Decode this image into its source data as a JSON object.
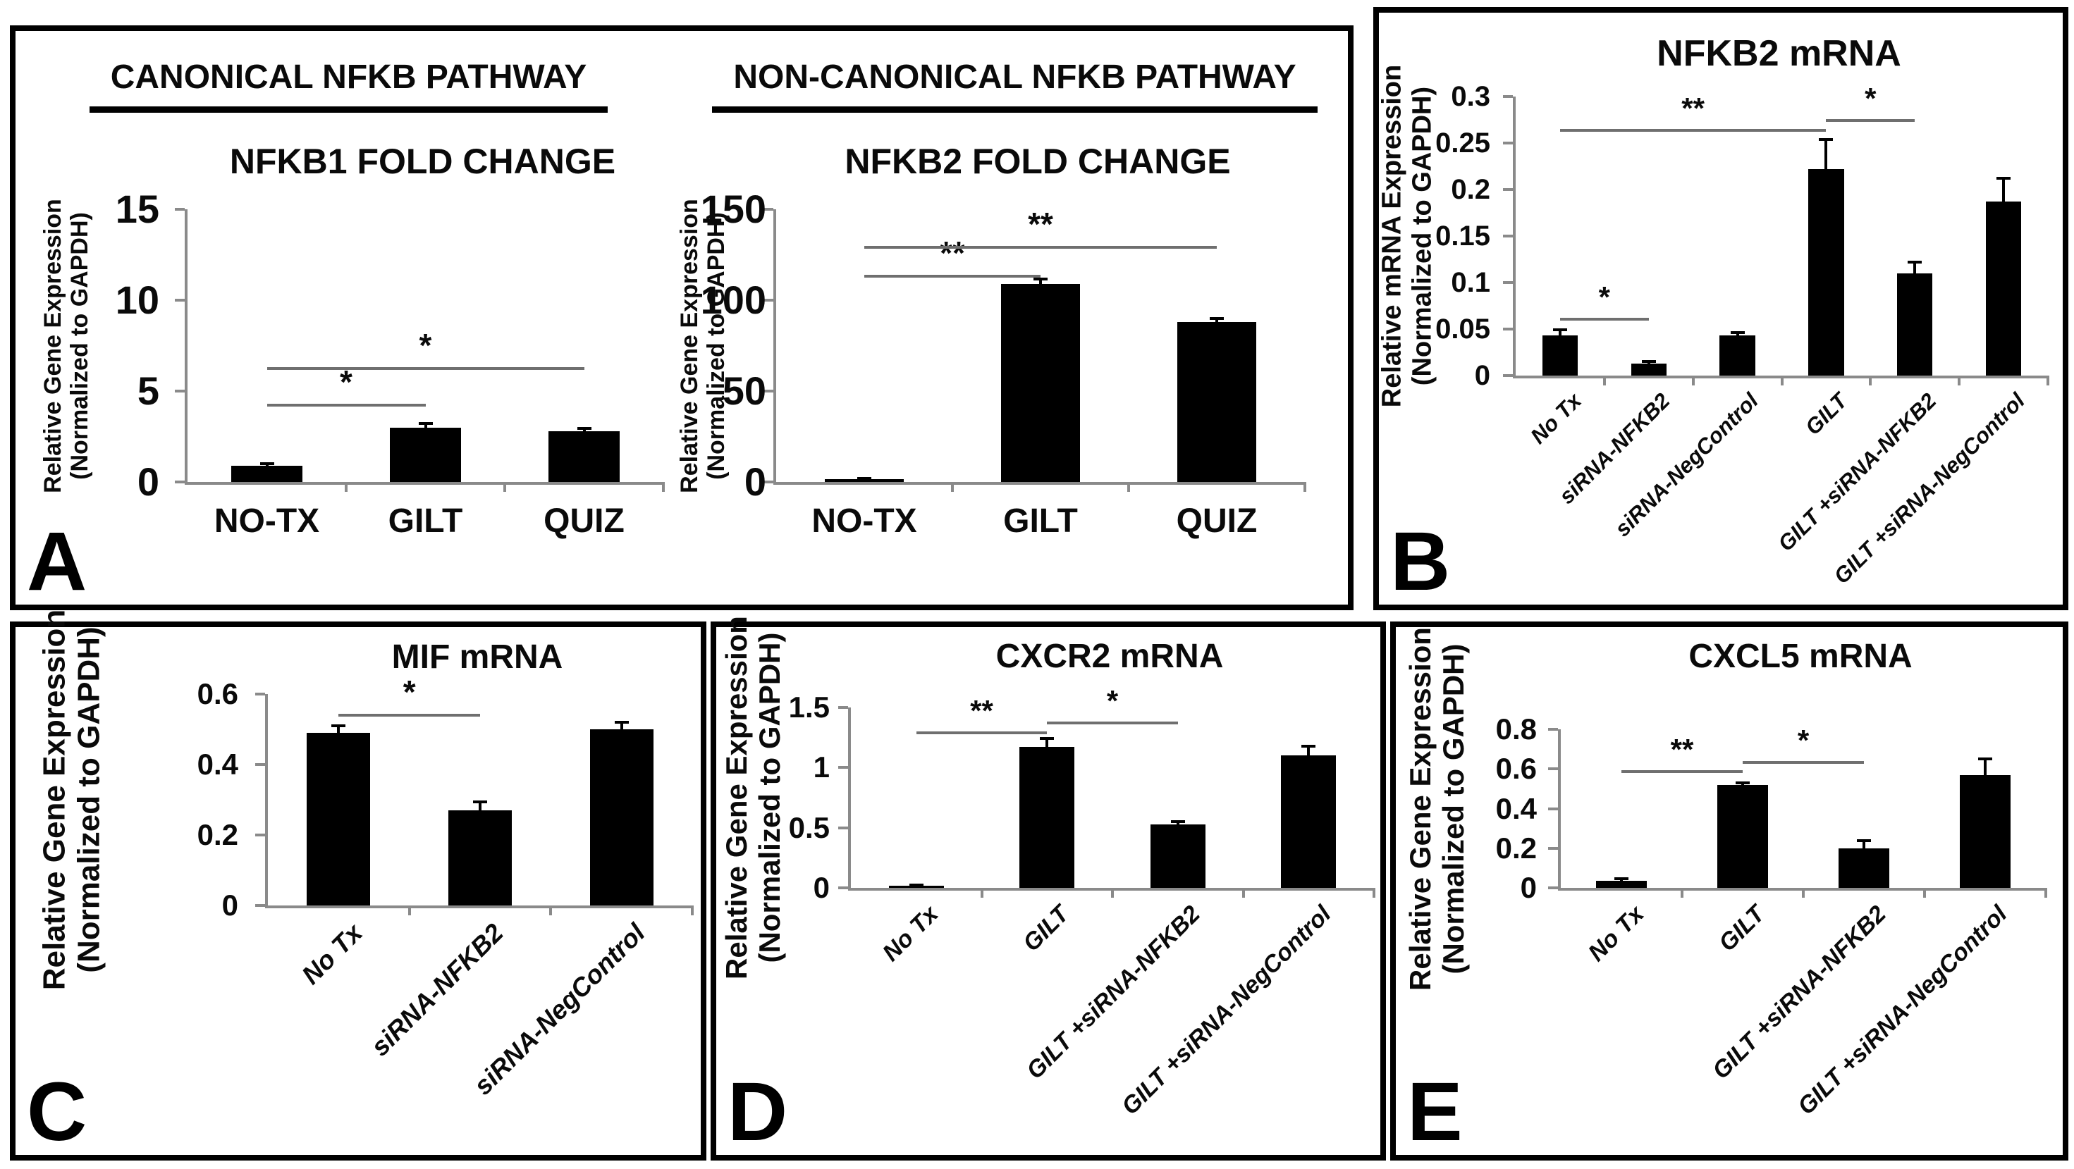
{
  "figure": {
    "colors": {
      "background": "#ffffff",
      "panel_border": "#000000",
      "bar": "#000000",
      "axis": "#8a8a8a",
      "sig": "#6f6f6f",
      "text": "#0a0a0a"
    }
  },
  "panels": {
    "A": {
      "letter": "A",
      "headers": [
        "CANONICAL NFKB PATHWAY",
        "NON-CANONICAL  NFKB PATHWAY"
      ]
    },
    "B": {
      "letter": "B"
    },
    "C": {
      "letter": "C"
    },
    "D": {
      "letter": "D"
    },
    "E": {
      "letter": "E"
    }
  },
  "chart_data": [
    {
      "id": "nfkb1_fold",
      "type": "bar",
      "title": "NFKB1 FOLD CHANGE",
      "ylabel_lines": [
        "Relative Gene Expression",
        "(Normalized to GAPDH)"
      ],
      "categories": [
        "NO-TX",
        "GILT",
        "QUIZ"
      ],
      "values": [
        0.9,
        3.0,
        2.8
      ],
      "errors": [
        0.1,
        0.2,
        0.15
      ],
      "ylim": [
        0,
        15
      ],
      "yticks": [
        0,
        5,
        10,
        15
      ],
      "ytick_labels": [
        "0",
        "5",
        "10",
        "15"
      ],
      "grid": false,
      "legend": false,
      "significance": [
        {
          "from": 0,
          "to": 1,
          "y": 4.3,
          "label": "*"
        },
        {
          "from": 0,
          "to": 2,
          "y": 6.3,
          "label": "*"
        }
      ]
    },
    {
      "id": "nfkb2_fold",
      "type": "bar",
      "title": "NFKB2 FOLD CHANGE",
      "ylabel_lines": [
        "Relative Gene Expression",
        "(Normalized to GAPDH)"
      ],
      "categories": [
        "NO-TX",
        "GILT",
        "QUIZ"
      ],
      "values": [
        1.5,
        109,
        88
      ],
      "errors": [
        0.5,
        2.5,
        2
      ],
      "ylim": [
        0,
        150
      ],
      "yticks": [
        0,
        50,
        100,
        150
      ],
      "ytick_labels": [
        "0",
        "50",
        "100",
        "150"
      ],
      "grid": false,
      "legend": false,
      "significance": [
        {
          "from": 0,
          "to": 1,
          "y": 114,
          "label": "**"
        },
        {
          "from": 0,
          "to": 2,
          "y": 130,
          "label": "**"
        }
      ]
    },
    {
      "id": "nfkb2_mrna",
      "type": "bar",
      "title": "NFKB2 mRNA",
      "ylabel_lines": [
        "Relative mRNA Expression",
        "(Normalized to GAPDH)"
      ],
      "categories": [
        "No Tx",
        "siRNA-NFKB2",
        "siRNA-NegControl",
        "GILT",
        "GILT +siRNA-NFKB2",
        "GILT +siRNA-NegControl"
      ],
      "values": [
        0.043,
        0.013,
        0.043,
        0.222,
        0.11,
        0.187
      ],
      "errors": [
        0.006,
        0.002,
        0.003,
        0.032,
        0.012,
        0.025
      ],
      "ylim": [
        0,
        0.3
      ],
      "yticks": [
        0,
        0.05,
        0.1,
        0.15,
        0.2,
        0.25,
        0.3
      ],
      "ytick_labels": [
        "0",
        "0.05",
        "0.1",
        "0.15",
        "0.2",
        "0.25",
        "0.3"
      ],
      "grid": false,
      "legend": false,
      "significance": [
        {
          "from": 0,
          "to": 1,
          "y": 0.062,
          "label": "*"
        },
        {
          "from": 0,
          "to": 3,
          "y": 0.265,
          "label": "**"
        },
        {
          "from": 3,
          "to": 4,
          "y": 0.276,
          "label": "*"
        }
      ]
    },
    {
      "id": "mif_mrna",
      "type": "bar",
      "title": "MIF mRNA",
      "ylabel_lines": [
        "Relative Gene Expression",
        "(Normalized to GAPDH)"
      ],
      "categories": [
        "No Tx",
        "siRNA-NFKB2",
        "siRNA-NegControl"
      ],
      "values": [
        0.49,
        0.27,
        0.5
      ],
      "errors": [
        0.02,
        0.025,
        0.02
      ],
      "ylim": [
        0,
        0.6
      ],
      "yticks": [
        0,
        0.2,
        0.4,
        0.6
      ],
      "ytick_labels": [
        "0",
        "0.2",
        "0.4",
        "0.6"
      ],
      "grid": false,
      "legend": false,
      "significance": [
        {
          "from": 0,
          "to": 1,
          "y": 0.545,
          "label": "*"
        }
      ]
    },
    {
      "id": "cxcr2_mrna",
      "type": "bar",
      "title": "CXCR2 mRNA",
      "ylabel_lines": [
        "Relative Gene Expression",
        "(Normalized to GAPDH)"
      ],
      "categories": [
        "No Tx",
        "GILT",
        "GILT +siRNA-NFKB2",
        "GILT +siRNA-NegControl"
      ],
      "values": [
        0.02,
        1.17,
        0.53,
        1.1
      ],
      "errors": [
        0.005,
        0.07,
        0.02,
        0.08
      ],
      "ylim": [
        0,
        1.5
      ],
      "yticks": [
        0,
        0.5,
        1,
        1.5
      ],
      "ytick_labels": [
        "0",
        "0.5",
        "1",
        "1.5"
      ],
      "grid": false,
      "legend": false,
      "significance": [
        {
          "from": 0,
          "to": 1,
          "y": 1.3,
          "label": "**"
        },
        {
          "from": 1,
          "to": 2,
          "y": 1.38,
          "label": "*"
        }
      ]
    },
    {
      "id": "cxcl5_mrna",
      "type": "bar",
      "title": "CXCL5 mRNA",
      "ylabel_lines": [
        "Relative Gene Expression",
        "(Normalized to GAPDH)"
      ],
      "categories": [
        "No Tx",
        "GILT",
        "GILT +siRNA-NFKB2",
        "GILT +siRNA-NegControl"
      ],
      "values": [
        0.035,
        0.52,
        0.2,
        0.57
      ],
      "errors": [
        0.012,
        0.01,
        0.04,
        0.08
      ],
      "ylim": [
        0,
        0.8
      ],
      "yticks": [
        0,
        0.2,
        0.4,
        0.6,
        0.8
      ],
      "ytick_labels": [
        "0",
        "0.2",
        "0.4",
        "0.6",
        "0.8"
      ],
      "grid": false,
      "legend": false,
      "significance": [
        {
          "from": 0,
          "to": 1,
          "y": 0.595,
          "label": "**"
        },
        {
          "from": 1,
          "to": 2,
          "y": 0.64,
          "label": "*"
        }
      ]
    }
  ]
}
